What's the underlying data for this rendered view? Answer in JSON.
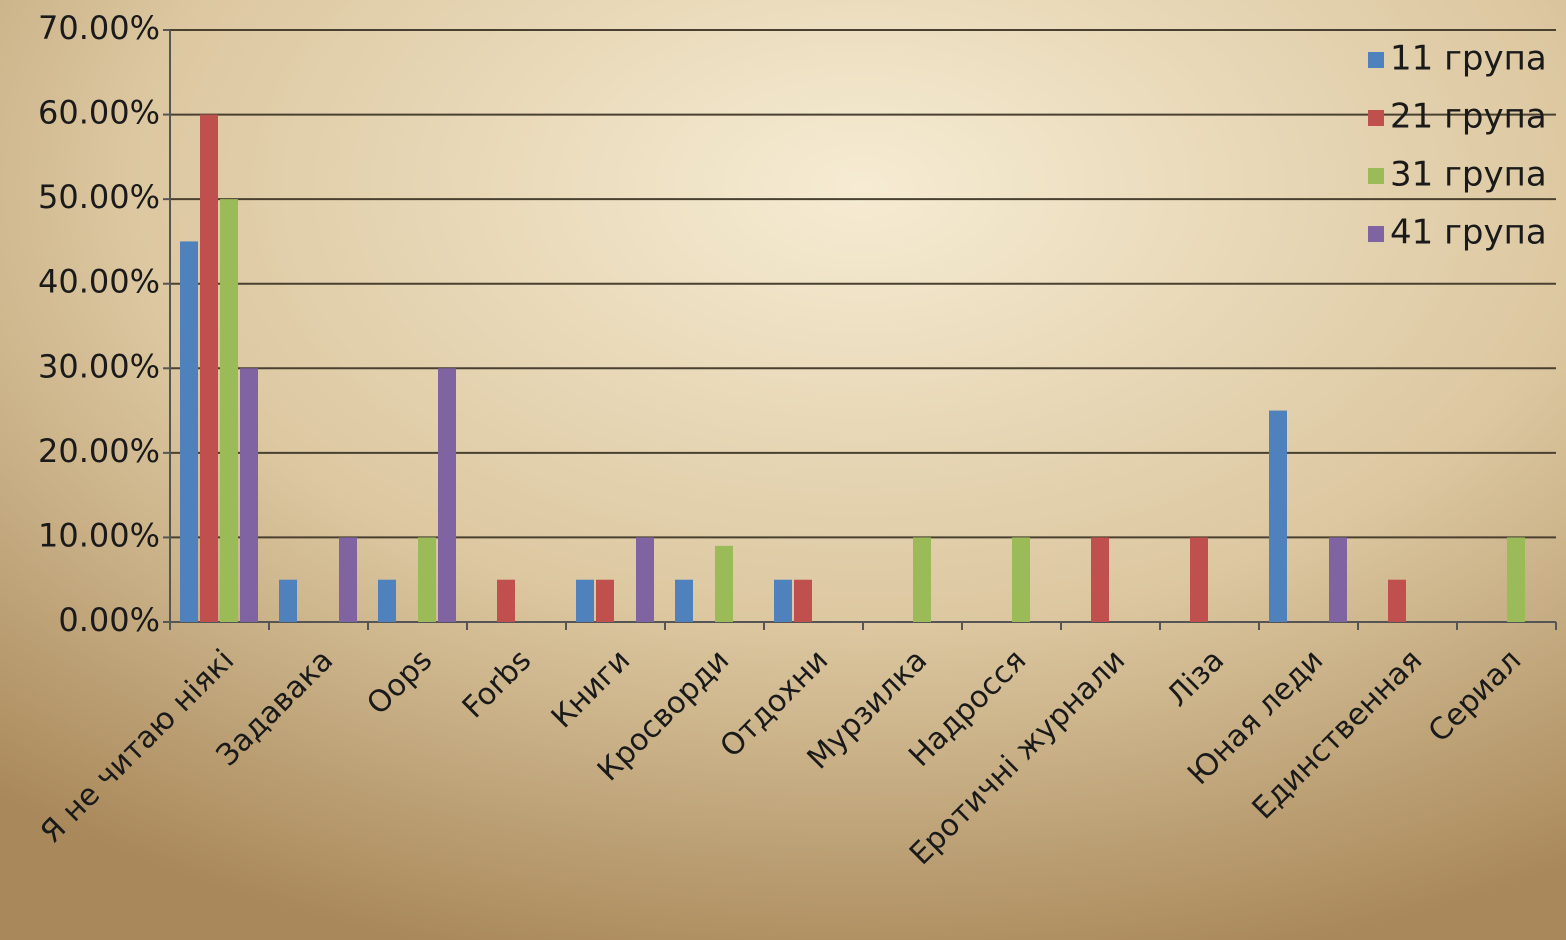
{
  "chart_data": {
    "type": "bar",
    "categories": [
      "Я не читаю ніякі",
      "Задавака",
      "Oops",
      "Forbs",
      "Книги",
      "Кросворди",
      "Отдохни",
      "Мурзилка",
      "Надросся",
      "Еротичні журнали",
      "Ліза",
      "Юная леди",
      "Единственная",
      "Сериал"
    ],
    "series": [
      {
        "name": "11 група",
        "color": "#4f81bd",
        "values": [
          45,
          5,
          5,
          0,
          5,
          5,
          5,
          0,
          0,
          0,
          0,
          25,
          0,
          0
        ]
      },
      {
        "name": "21 група",
        "color": "#c0504d",
        "values": [
          60,
          0,
          0,
          5,
          5,
          0,
          5,
          0,
          0,
          10,
          10,
          0,
          5,
          0
        ]
      },
      {
        "name": "31 група",
        "color": "#9bbb59",
        "values": [
          50,
          0,
          10,
          0,
          0,
          9,
          0,
          10,
          10,
          0,
          0,
          0,
          0,
          10
        ]
      },
      {
        "name": "41 група",
        "color": "#8064a2",
        "values": [
          30,
          10,
          30,
          0,
          10,
          0,
          0,
          0,
          0,
          0,
          0,
          10,
          0,
          0
        ]
      }
    ],
    "ylim": [
      0,
      70
    ],
    "yticks": [
      {
        "value": 0,
        "label": "0.00%"
      },
      {
        "value": 10,
        "label": "10.00%"
      },
      {
        "value": 20,
        "label": "20.00%"
      },
      {
        "value": 30,
        "label": "30.00%"
      },
      {
        "value": 40,
        "label": "40.00%"
      },
      {
        "value": 50,
        "label": "50.00%"
      },
      {
        "value": 60,
        "label": "60.00%"
      },
      {
        "value": 70,
        "label": "70.00%"
      }
    ],
    "grid": true,
    "legend": "top-right"
  }
}
